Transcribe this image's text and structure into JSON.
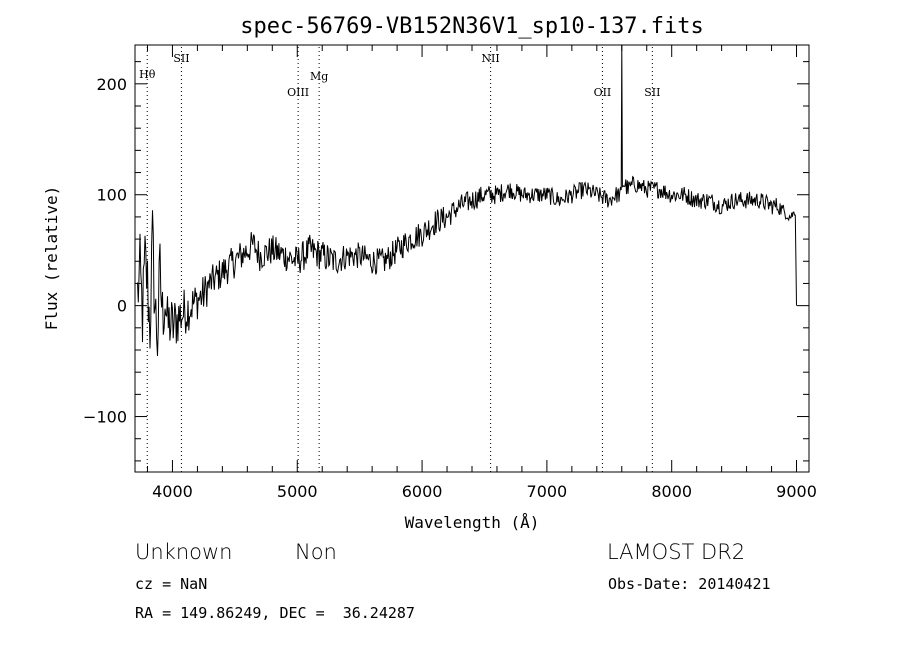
{
  "chart_data": {
    "type": "line",
    "title": "spec-56769-VB152N36V1_sp10-137.fits",
    "xlabel": "Wavelength (Å)",
    "ylabel": "Flux (relative)",
    "xlim": [
      3700,
      9100
    ],
    "ylim": [
      -150,
      235
    ],
    "xticks": [
      4000,
      5000,
      6000,
      7000,
      8000,
      9000
    ],
    "xtick_labels": [
      "4000",
      "5000",
      "6000",
      "7000",
      "8000",
      "9000"
    ],
    "yticks": [
      -100,
      0,
      100,
      200
    ],
    "ytick_labels": [
      "−100",
      "0",
      "100",
      "200"
    ],
    "grid": false,
    "line_color": "#000000",
    "series": [
      {
        "x": [
          3720,
          3740,
          3760,
          3780,
          3800,
          3820,
          3840,
          3860,
          3880,
          3900,
          3920,
          3940,
          3960,
          3980,
          4000,
          4050,
          4100,
          4150,
          4200,
          4250,
          4300,
          4400,
          4500,
          4600,
          4650,
          4700,
          4800,
          4900,
          5000,
          5100,
          5200,
          5300,
          5400,
          5500,
          5600,
          5700,
          5800,
          5900,
          6000,
          6100,
          6200,
          6300,
          6400,
          6500,
          6600,
          6700,
          6800,
          6900,
          7000,
          7100,
          7200,
          7300,
          7400,
          7500,
          7550,
          7595,
          7600,
          7605,
          7620,
          7650,
          7700,
          7800,
          7900,
          8000,
          8100,
          8200,
          8300,
          8400,
          8500,
          8600,
          8700,
          8800,
          8850,
          8900,
          8950,
          8990,
          9000
        ],
        "y": [
          10,
          30,
          -10,
          40,
          20,
          -20,
          60,
          0,
          -30,
          30,
          -10,
          10,
          -20,
          -15,
          -20,
          -10,
          -5,
          0,
          5,
          10,
          20,
          30,
          40,
          50,
          55,
          45,
          50,
          45,
          40,
          50,
          45,
          40,
          45,
          45,
          40,
          40,
          50,
          60,
          65,
          75,
          80,
          90,
          95,
          100,
          100,
          105,
          100,
          100,
          100,
          95,
          100,
          105,
          100,
          95,
          100,
          100,
          235,
          110,
          110,
          105,
          110,
          105,
          105,
          100,
          100,
          95,
          95,
          90,
          95,
          95,
          95,
          90,
          90,
          85,
          80,
          85,
          0
        ],
        "noise": [
          35,
          35,
          35,
          35,
          35,
          35,
          35,
          35,
          35,
          35,
          35,
          35,
          30,
          30,
          28,
          25,
          22,
          20,
          18,
          18,
          15,
          15,
          15,
          14,
          14,
          14,
          14,
          14,
          14,
          14,
          14,
          14,
          12,
          12,
          12,
          12,
          12,
          12,
          12,
          12,
          11,
          10,
          10,
          9,
          9,
          8,
          8,
          8,
          8,
          8,
          8,
          8,
          8,
          8,
          8,
          8,
          0,
          8,
          9,
          8,
          8,
          8,
          8,
          8,
          8,
          8,
          8,
          8,
          8,
          8,
          8,
          8,
          8,
          6,
          5,
          4,
          0
        ]
      }
    ],
    "lines": [
      {
        "label": "Hθ",
        "x": 3798
      },
      {
        "label": "SII",
        "x": 4072
      },
      {
        "label": "OIII",
        "x": 5007
      },
      {
        "label": "Mg",
        "x": 5175
      },
      {
        "label": "NII",
        "x": 6549
      },
      {
        "label": "OII",
        "x": 7445
      },
      {
        "label": "SII",
        "x": 7845
      }
    ]
  },
  "info": {
    "class": "Unknown",
    "subclass": "Non",
    "survey": "LAMOST DR2",
    "cz": "cz = NaN",
    "obs_date": "Obs-Date: 20140421",
    "radec": "RA = 149.86249, DEC =  36.24287"
  }
}
